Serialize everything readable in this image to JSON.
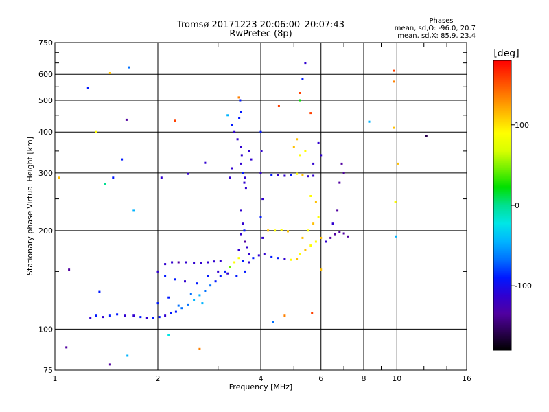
{
  "chart_data": {
    "type": "scatter",
    "title": "Tromsø 20171223 20:06:00–20:07:43",
    "subtitle": "RwPretec (8p)",
    "stats_box": {
      "heading": "Phases",
      "line1": "mean, sd,O: -96.0, 20.7",
      "line2": "mean, sd,X:  85.9, 23.4"
    },
    "xlabel": "Frequency [MHz]",
    "ylabel": "Stationary phase Virtual Height [km]",
    "x_scale": "log",
    "y_scale": "log",
    "xlim": [
      1,
      16
    ],
    "ylim": [
      75,
      750
    ],
    "x_ticks": [
      1,
      2,
      4,
      6,
      8,
      10,
      16
    ],
    "x_tick_labels": [
      "1",
      "2",
      "4",
      "6",
      "8",
      "10",
      "16"
    ],
    "y_ticks": [
      75,
      100,
      200,
      300,
      400,
      500,
      600,
      750
    ],
    "y_tick_labels": [
      "75",
      "100",
      "200",
      "300",
      "400",
      "500",
      "600",
      "750"
    ],
    "grid": true,
    "colorbar": {
      "label": "[deg]",
      "range": [
        -180,
        180
      ],
      "ticks": [
        100,
        0,
        -100
      ],
      "tick_labels": [
        "100",
        "0",
        "-100"
      ],
      "colors": [
        "#000000",
        "#2a0050",
        "#5000a0",
        "#3000d0",
        "#0018ff",
        "#0070ff",
        "#00b4ff",
        "#00e6e6",
        "#00e090",
        "#00e000",
        "#70f000",
        "#d8ff00",
        "#ffff00",
        "#ffc000",
        "#ff8000",
        "#ff4000",
        "#ff0000"
      ]
    },
    "series": [
      {
        "values": [
          {
            "x": 1.27,
            "y": 108,
            "c": -110
          },
          {
            "x": 1.32,
            "y": 110,
            "c": -95
          },
          {
            "x": 1.38,
            "y": 109,
            "c": -120
          },
          {
            "x": 1.45,
            "y": 110,
            "c": -100
          },
          {
            "x": 1.52,
            "y": 111,
            "c": -90
          },
          {
            "x": 1.6,
            "y": 110,
            "c": -115
          },
          {
            "x": 1.7,
            "y": 110,
            "c": -105
          },
          {
            "x": 1.78,
            "y": 109,
            "c": -95
          },
          {
            "x": 1.86,
            "y": 108,
            "c": -110
          },
          {
            "x": 1.94,
            "y": 108,
            "c": -100
          },
          {
            "x": 2.02,
            "y": 109,
            "c": -95
          },
          {
            "x": 2.1,
            "y": 110,
            "c": -105
          },
          {
            "x": 2.18,
            "y": 112,
            "c": -100
          },
          {
            "x": 2.26,
            "y": 113,
            "c": -90
          },
          {
            "x": 2.35,
            "y": 116,
            "c": -75
          },
          {
            "x": 2.45,
            "y": 119,
            "c": -60
          },
          {
            "x": 2.55,
            "y": 123,
            "c": -50
          },
          {
            "x": 2.65,
            "y": 127,
            "c": -40
          },
          {
            "x": 2.75,
            "y": 131,
            "c": -60
          },
          {
            "x": 2.85,
            "y": 136,
            "c": -70
          },
          {
            "x": 2.95,
            "y": 140,
            "c": -85
          },
          {
            "x": 3.05,
            "y": 145,
            "c": -95
          },
          {
            "x": 3.15,
            "y": 150,
            "c": -100
          },
          {
            "x": 3.25,
            "y": 155,
            "c": 40
          },
          {
            "x": 3.35,
            "y": 160,
            "c": 90
          },
          {
            "x": 3.45,
            "y": 165,
            "c": 100
          },
          {
            "x": 3.55,
            "y": 162,
            "c": -100
          },
          {
            "x": 3.7,
            "y": 160,
            "c": -110
          },
          {
            "x": 2.0,
            "y": 150,
            "c": -120
          },
          {
            "x": 2.1,
            "y": 158,
            "c": -115
          },
          {
            "x": 2.2,
            "y": 160,
            "c": -120
          },
          {
            "x": 2.3,
            "y": 160,
            "c": -125
          },
          {
            "x": 2.42,
            "y": 160,
            "c": -118
          },
          {
            "x": 2.55,
            "y": 159,
            "c": -122
          },
          {
            "x": 2.68,
            "y": 159,
            "c": -115
          },
          {
            "x": 2.8,
            "y": 160,
            "c": -120
          },
          {
            "x": 2.92,
            "y": 161,
            "c": -110
          },
          {
            "x": 3.05,
            "y": 162,
            "c": -105
          },
          {
            "x": 2.1,
            "y": 145,
            "c": -100
          },
          {
            "x": 2.25,
            "y": 142,
            "c": -95
          },
          {
            "x": 2.4,
            "y": 140,
            "c": -110
          },
          {
            "x": 2.6,
            "y": 138,
            "c": -100
          },
          {
            "x": 2.8,
            "y": 145,
            "c": -90
          },
          {
            "x": 3.0,
            "y": 150,
            "c": -105
          },
          {
            "x": 3.2,
            "y": 148,
            "c": -110
          },
          {
            "x": 3.4,
            "y": 145,
            "c": -100
          },
          {
            "x": 3.6,
            "y": 150,
            "c": -95
          },
          {
            "x": 2.0,
            "y": 120,
            "c": -90
          },
          {
            "x": 2.15,
            "y": 125,
            "c": -80
          },
          {
            "x": 2.3,
            "y": 118,
            "c": -70
          },
          {
            "x": 2.5,
            "y": 128,
            "c": -60
          },
          {
            "x": 2.7,
            "y": 120,
            "c": -55
          },
          {
            "x": 3.3,
            "y": 420,
            "c": -100
          },
          {
            "x": 3.35,
            "y": 400,
            "c": -110
          },
          {
            "x": 3.42,
            "y": 380,
            "c": -115
          },
          {
            "x": 3.5,
            "y": 360,
            "c": -120
          },
          {
            "x": 3.52,
            "y": 340,
            "c": -110
          },
          {
            "x": 3.5,
            "y": 320,
            "c": -105
          },
          {
            "x": 3.55,
            "y": 300,
            "c": -100
          },
          {
            "x": 3.6,
            "y": 290,
            "c": -115
          },
          {
            "x": 3.58,
            "y": 280,
            "c": -120
          },
          {
            "x": 3.62,
            "y": 270,
            "c": -110
          },
          {
            "x": 3.48,
            "y": 500,
            "c": -90
          },
          {
            "x": 3.5,
            "y": 460,
            "c": -95
          },
          {
            "x": 3.46,
            "y": 440,
            "c": -100
          },
          {
            "x": 3.7,
            "y": 350,
            "c": -110
          },
          {
            "x": 3.75,
            "y": 330,
            "c": -105
          },
          {
            "x": 3.3,
            "y": 310,
            "c": -120
          },
          {
            "x": 3.25,
            "y": 290,
            "c": -115
          },
          {
            "x": 3.5,
            "y": 230,
            "c": -110
          },
          {
            "x": 3.55,
            "y": 210,
            "c": -120
          },
          {
            "x": 3.5,
            "y": 195,
            "c": -115
          },
          {
            "x": 3.6,
            "y": 185,
            "c": -125
          },
          {
            "x": 3.65,
            "y": 178,
            "c": -110
          },
          {
            "x": 3.7,
            "y": 170,
            "c": -120
          },
          {
            "x": 3.45,
            "y": 175,
            "c": -105
          },
          {
            "x": 3.58,
            "y": 200,
            "c": -100
          },
          {
            "x": 3.8,
            "y": 165,
            "c": -100
          },
          {
            "x": 3.95,
            "y": 168,
            "c": -110
          },
          {
            "x": 4.1,
            "y": 170,
            "c": -105
          },
          {
            "x": 4.3,
            "y": 166,
            "c": -95
          },
          {
            "x": 4.5,
            "y": 165,
            "c": -100
          },
          {
            "x": 4.7,
            "y": 164,
            "c": -110
          },
          {
            "x": 4.9,
            "y": 163,
            "c": 90
          },
          {
            "x": 5.1,
            "y": 164,
            "c": 110
          },
          {
            "x": 4.0,
            "y": 400,
            "c": -100
          },
          {
            "x": 4.02,
            "y": 350,
            "c": -110
          },
          {
            "x": 4.0,
            "y": 300,
            "c": -105
          },
          {
            "x": 4.05,
            "y": 250,
            "c": -115
          },
          {
            "x": 4.0,
            "y": 220,
            "c": -100
          },
          {
            "x": 4.05,
            "y": 190,
            "c": -110
          },
          {
            "x": 4.3,
            "y": 295,
            "c": -100
          },
          {
            "x": 4.5,
            "y": 296,
            "c": -110
          },
          {
            "x": 4.7,
            "y": 294,
            "c": -105
          },
          {
            "x": 4.9,
            "y": 296,
            "c": -100
          },
          {
            "x": 5.1,
            "y": 298,
            "c": 100
          },
          {
            "x": 5.3,
            "y": 295,
            "c": 110
          },
          {
            "x": 5.5,
            "y": 293,
            "c": -110
          },
          {
            "x": 5.7,
            "y": 294,
            "c": -105
          },
          {
            "x": 4.2,
            "y": 200,
            "c": 110
          },
          {
            "x": 4.4,
            "y": 200,
            "c": 100
          },
          {
            "x": 4.6,
            "y": 201,
            "c": 95
          },
          {
            "x": 4.8,
            "y": 199,
            "c": 120
          },
          {
            "x": 5.2,
            "y": 170,
            "c": 100
          },
          {
            "x": 5.4,
            "y": 175,
            "c": 110
          },
          {
            "x": 5.6,
            "y": 180,
            "c": 90
          },
          {
            "x": 5.8,
            "y": 185,
            "c": 100
          },
          {
            "x": 6.0,
            "y": 190,
            "c": 105
          },
          {
            "x": 5.3,
            "y": 190,
            "c": 115
          },
          {
            "x": 5.5,
            "y": 200,
            "c": 95
          },
          {
            "x": 5.7,
            "y": 210,
            "c": 110
          },
          {
            "x": 5.9,
            "y": 220,
            "c": 100
          },
          {
            "x": 5.6,
            "y": 255,
            "c": 100
          },
          {
            "x": 5.8,
            "y": 245,
            "c": 110
          },
          {
            "x": 5.0,
            "y": 360,
            "c": 105
          },
          {
            "x": 5.2,
            "y": 340,
            "c": 95
          },
          {
            "x": 5.1,
            "y": 380,
            "c": 110
          },
          {
            "x": 5.4,
            "y": 350,
            "c": 100
          },
          {
            "x": 5.9,
            "y": 370,
            "c": -110
          },
          {
            "x": 6.0,
            "y": 340,
            "c": -120
          },
          {
            "x": 5.7,
            "y": 320,
            "c": -115
          },
          {
            "x": 6.2,
            "y": 185,
            "c": -120
          },
          {
            "x": 6.4,
            "y": 190,
            "c": -130
          },
          {
            "x": 6.6,
            "y": 195,
            "c": -125
          },
          {
            "x": 6.8,
            "y": 198,
            "c": -135
          },
          {
            "x": 7.0,
            "y": 196,
            "c": -130
          },
          {
            "x": 7.2,
            "y": 192,
            "c": -140
          },
          {
            "x": 6.5,
            "y": 210,
            "c": -120
          },
          {
            "x": 6.7,
            "y": 230,
            "c": -125
          },
          {
            "x": 6.9,
            "y": 320,
            "c": -130
          },
          {
            "x": 7.0,
            "y": 300,
            "c": -135
          },
          {
            "x": 6.8,
            "y": 280,
            "c": -125
          },
          {
            "x": 1.03,
            "y": 290,
            "c": 110
          },
          {
            "x": 1.08,
            "y": 88,
            "c": -130
          },
          {
            "x": 1.1,
            "y": 152,
            "c": -140
          },
          {
            "x": 1.25,
            "y": 545,
            "c": -90
          },
          {
            "x": 1.32,
            "y": 400,
            "c": 100
          },
          {
            "x": 1.35,
            "y": 130,
            "c": -100
          },
          {
            "x": 1.4,
            "y": 278,
            "c": 10
          },
          {
            "x": 1.45,
            "y": 605,
            "c": 120
          },
          {
            "x": 1.45,
            "y": 78,
            "c": -140
          },
          {
            "x": 1.48,
            "y": 290,
            "c": -90
          },
          {
            "x": 1.57,
            "y": 330,
            "c": -100
          },
          {
            "x": 1.62,
            "y": 436,
            "c": -130
          },
          {
            "x": 1.63,
            "y": 83,
            "c": -50
          },
          {
            "x": 1.65,
            "y": 630,
            "c": -60
          },
          {
            "x": 1.7,
            "y": 230,
            "c": -40
          },
          {
            "x": 2.05,
            "y": 290,
            "c": -110
          },
          {
            "x": 2.15,
            "y": 96,
            "c": -30
          },
          {
            "x": 2.25,
            "y": 433,
            "c": 150
          },
          {
            "x": 2.45,
            "y": 298,
            "c": -120
          },
          {
            "x": 2.65,
            "y": 87,
            "c": 140
          },
          {
            "x": 2.75,
            "y": 322,
            "c": -115
          },
          {
            "x": 3.2,
            "y": 450,
            "c": -40
          },
          {
            "x": 3.45,
            "y": 510,
            "c": 140
          },
          {
            "x": 4.52,
            "y": 480,
            "c": 150
          },
          {
            "x": 4.7,
            "y": 110,
            "c": 130
          },
          {
            "x": 4.35,
            "y": 105,
            "c": -60
          },
          {
            "x": 5.2,
            "y": 500,
            "c": 30
          },
          {
            "x": 5.2,
            "y": 526,
            "c": 160
          },
          {
            "x": 5.3,
            "y": 580,
            "c": -100
          },
          {
            "x": 5.4,
            "y": 650,
            "c": -120
          },
          {
            "x": 5.6,
            "y": 457,
            "c": 160
          },
          {
            "x": 5.65,
            "y": 112,
            "c": 150
          },
          {
            "x": 6.0,
            "y": 152,
            "c": 110
          },
          {
            "x": 8.3,
            "y": 430,
            "c": -40
          },
          {
            "x": 9.8,
            "y": 615,
            "c": 150
          },
          {
            "x": 9.8,
            "y": 570,
            "c": 130
          },
          {
            "x": 9.8,
            "y": 412,
            "c": 120
          },
          {
            "x": 9.9,
            "y": 245,
            "c": 100
          },
          {
            "x": 9.95,
            "y": 192,
            "c": -40
          },
          {
            "x": 10.1,
            "y": 320,
            "c": 120
          },
          {
            "x": 12.2,
            "y": 390,
            "c": -160
          }
        ]
      }
    ]
  }
}
